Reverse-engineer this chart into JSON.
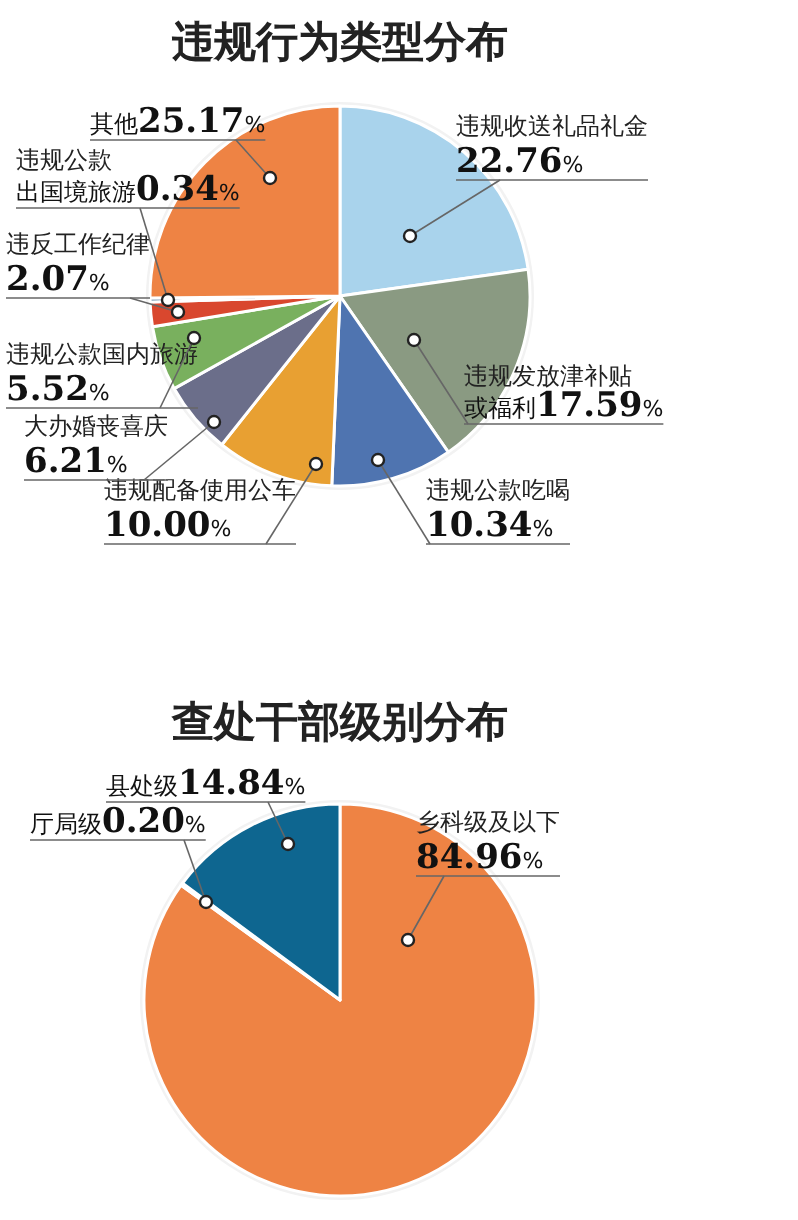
{
  "chart_data": [
    {
      "type": "pie",
      "title": "违规行为类型分布",
      "categories": [
        "违规收送礼品礼金",
        "违规发放津补贴或福利",
        "违规公款吃喝",
        "违规配备使用公车",
        "大办婚丧喜庆",
        "违规公款国内旅游",
        "违反工作纪律",
        "违规公款出国境旅游",
        "其他"
      ],
      "values": [
        22.76,
        17.59,
        10.34,
        10.0,
        6.21,
        5.52,
        2.07,
        0.34,
        25.17
      ],
      "value_labels": [
        "22.76%",
        "17.59%",
        "10.34%",
        "10.00%",
        "6.21%",
        "5.52%",
        "2.07%",
        "0.34%",
        "25.17%"
      ],
      "colors": [
        "#a9d3ec",
        "#8a9a82",
        "#4f74b0",
        "#e8a032",
        "#6b6e8a",
        "#79b05e",
        "#d9472e",
        "#2a5d86",
        "#ee8344"
      ]
    },
    {
      "type": "pie",
      "title": "查处干部级别分布",
      "categories": [
        "乡科级及以下",
        "厅局级",
        "县处级"
      ],
      "values": [
        84.96,
        0.2,
        14.84
      ],
      "value_labels": [
        "84.96%",
        "0.20%",
        "14.84%"
      ],
      "colors": [
        "#ee8344",
        "#7cb060",
        "#0e6690"
      ]
    }
  ]
}
